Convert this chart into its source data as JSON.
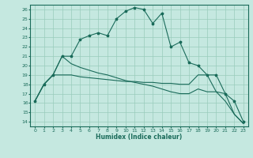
{
  "xlabel": "Humidex (Indice chaleur)",
  "xlim": [
    -0.5,
    23.5
  ],
  "ylim": [
    13.5,
    26.5
  ],
  "xticks": [
    0,
    1,
    2,
    3,
    4,
    5,
    6,
    7,
    8,
    9,
    10,
    11,
    12,
    13,
    14,
    15,
    16,
    17,
    18,
    19,
    20,
    21,
    22,
    23
  ],
  "yticks": [
    14,
    15,
    16,
    17,
    18,
    19,
    20,
    21,
    22,
    23,
    24,
    25,
    26
  ],
  "bg_color": "#c5e8e0",
  "grid_color": "#99ccbb",
  "line_color": "#1a6b5a",
  "line1_x": [
    0,
    1,
    2,
    3,
    4,
    5,
    6,
    7,
    8,
    9,
    10,
    11,
    12,
    13,
    14,
    15,
    16,
    17,
    18,
    19,
    20,
    21,
    22,
    23
  ],
  "line1_y": [
    16.2,
    18.0,
    19.0,
    21.0,
    21.0,
    22.8,
    23.2,
    23.5,
    23.2,
    25.0,
    25.8,
    26.2,
    26.0,
    24.5,
    25.6,
    22.0,
    22.5,
    20.3,
    20.0,
    19.0,
    19.0,
    17.0,
    16.2,
    14.0
  ],
  "line2_x": [
    0,
    1,
    2,
    3,
    4,
    5,
    6,
    7,
    8,
    9,
    10,
    11,
    12,
    13,
    14,
    15,
    16,
    17,
    18,
    19,
    20,
    21,
    22,
    23
  ],
  "line2_y": [
    16.2,
    18.0,
    19.0,
    19.0,
    19.0,
    18.8,
    18.7,
    18.6,
    18.5,
    18.4,
    18.3,
    18.3,
    18.2,
    18.2,
    18.1,
    18.1,
    18.0,
    18.0,
    19.0,
    19.0,
    17.2,
    17.0,
    14.8,
    13.8
  ],
  "line3_x": [
    0,
    1,
    2,
    3,
    4,
    5,
    6,
    7,
    8,
    9,
    10,
    11,
    12,
    13,
    14,
    15,
    16,
    17,
    18,
    19,
    20,
    21,
    22,
    23
  ],
  "line3_y": [
    16.2,
    18.0,
    19.0,
    21.0,
    20.2,
    19.8,
    19.5,
    19.2,
    19.0,
    18.7,
    18.4,
    18.2,
    18.0,
    17.8,
    17.5,
    17.2,
    17.0,
    17.0,
    17.5,
    17.2,
    17.2,
    16.2,
    14.8,
    13.8
  ]
}
